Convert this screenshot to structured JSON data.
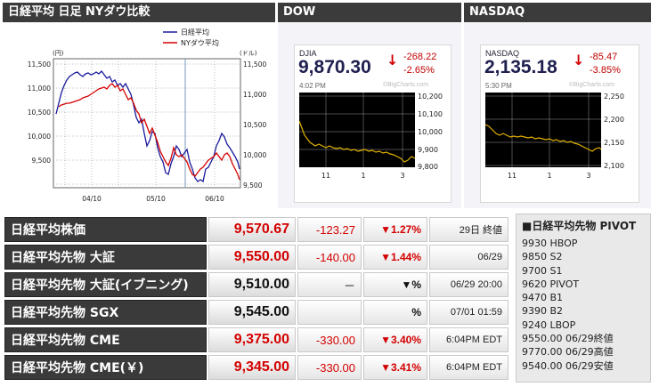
{
  "panels": {
    "nikkei_title": "日経平均 日足 NYダウ比較",
    "dow_title": "DOW",
    "nasdaq_title": "NASDAQ"
  },
  "nikkei_chart": {
    "legend": [
      "日経平均",
      "NYダウ平均"
    ],
    "left_unit": "(円)",
    "right_unit": "(ドル)",
    "left_ticks": [
      "11,500",
      "11,000",
      "10,500",
      "10,000",
      "9,500"
    ],
    "right_ticks": [
      "11,500",
      "11,000",
      "10,500",
      "10,000",
      "9,500"
    ],
    "x_ticks": [
      "04/10",
      "05/10",
      "06/10"
    ]
  },
  "dow": {
    "symbol": "DJIA",
    "value": "9,870.30",
    "change": "-268.22",
    "change_pct": "-2.65%",
    "time": "4:02 PM",
    "watermark": "©BigCharts.com",
    "y_ticks": [
      "10,200",
      "10,100",
      "10,000",
      "9,900",
      "9,800"
    ],
    "x_ticks": [
      "11",
      "1",
      "3"
    ]
  },
  "nasdaq": {
    "symbol": "NASDAQ",
    "value": "2,135.18",
    "change": "-85.47",
    "change_pct": "-3.85%",
    "time": "5:30 PM",
    "watermark": "©BigCharts.com",
    "y_ticks": [
      "2,250",
      "2,200",
      "2,150",
      "2,100"
    ],
    "x_ticks": [
      "11",
      "1",
      "3"
    ]
  },
  "table": [
    {
      "name": "日経平均株価",
      "price": "9,570.67",
      "price_color": "red",
      "change": "-123.27",
      "pct": "▼1.27%",
      "time": "29日 終値"
    },
    {
      "name": "日経平均先物 大証",
      "price": "9,550.00",
      "price_color": "red",
      "change": "-140.00",
      "pct": "▼1.44%",
      "time": "06/29"
    },
    {
      "name": "日経平均先物 大証(イブニング)",
      "price": "9,510.00",
      "price_color": "black",
      "change": "－",
      "pct": "▼%",
      "time": "06/29 20:00"
    },
    {
      "name": "日経平均先物 SGX",
      "price": "9,545.00",
      "price_color": "black",
      "change": "",
      "pct": "%",
      "time": "07/01 01:59"
    },
    {
      "name": "日経平均先物 CME",
      "price": "9,375.00",
      "price_color": "red",
      "change": "-330.00",
      "pct": "▼3.40%",
      "time": "6:04PM EDT"
    },
    {
      "name": "日経平均先物 CME(￥)",
      "price": "9,345.00",
      "price_color": "red",
      "change": "-330.00",
      "pct": "▼3.41%",
      "time": "6:04PM EDT"
    }
  ],
  "pivot": {
    "title": "■日経平均先物 PIVOT",
    "lines": [
      "9930 HBOP",
      "9850 S2",
      "9700 S1",
      "9620 PIVOT",
      "9470 B1",
      "9390 B2",
      "9240 LBOP",
      "9550.00 06/29終値",
      "9770.00 06/29高値",
      "9540.00 06/29安値"
    ]
  },
  "colors": {
    "header_bg": "#3b3b3b",
    "down_red": "#d30000",
    "nikkei_line": "#1a1a9c",
    "dow_line": "#d40000",
    "intraday_line": "#c8a000"
  }
}
